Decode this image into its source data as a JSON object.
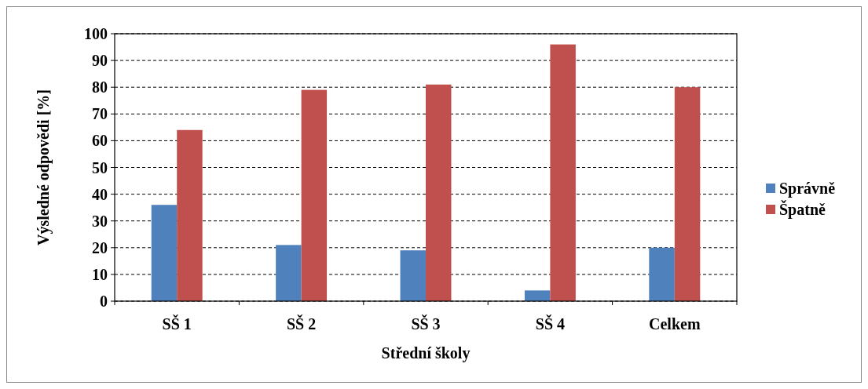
{
  "chart_data": {
    "type": "bar",
    "xlabel": "Střední školy",
    "ylabel": "Výsledné odpovědi [%]",
    "categories": [
      "SŠ 1",
      "SŠ 2",
      "SŠ 3",
      "SŠ 4",
      "Celkem"
    ],
    "series": [
      {
        "name": "Správně",
        "color": "#4f81bd",
        "values": [
          36,
          21,
          19,
          4,
          20
        ]
      },
      {
        "name": "Špatně",
        "color": "#c0504d",
        "values": [
          64,
          79,
          81,
          96,
          80
        ]
      }
    ],
    "ylim": [
      0,
      100
    ],
    "yticks": [
      0,
      10,
      20,
      30,
      40,
      50,
      60,
      70,
      80,
      90,
      100
    ],
    "grid": "y",
    "legend": "right"
  }
}
